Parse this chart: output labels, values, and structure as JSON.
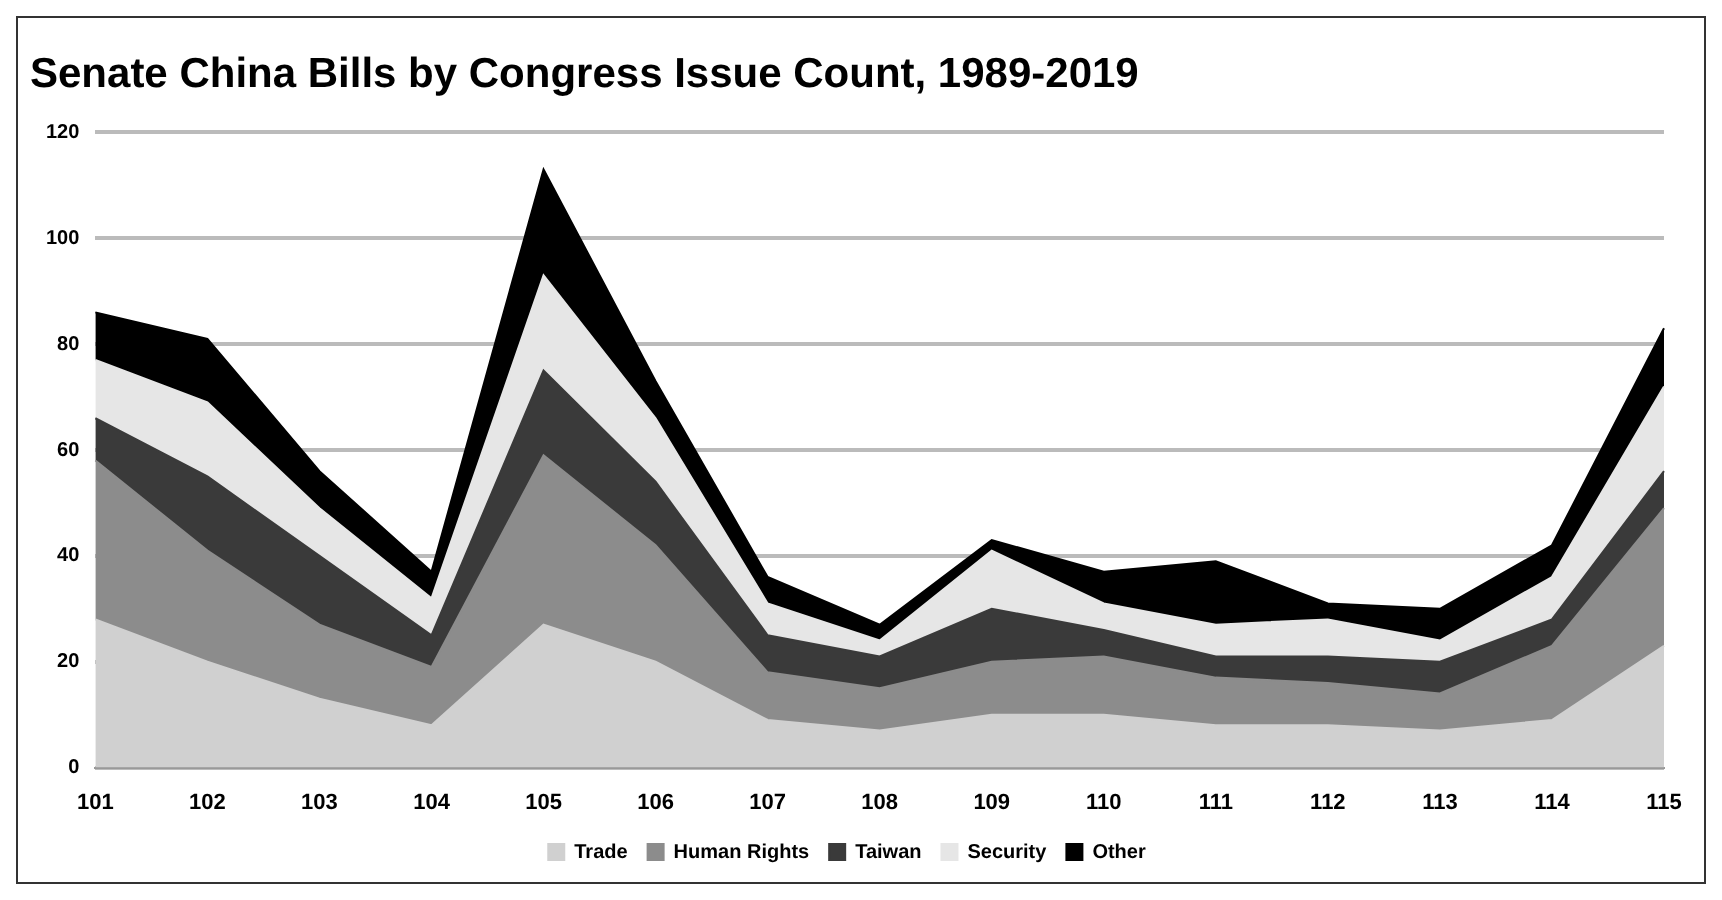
{
  "chart_data": {
    "type": "area",
    "title": "Senate China Bills by Congress Issue Count, 1989-2019",
    "categories": [
      "101",
      "102",
      "103",
      "104",
      "105",
      "106",
      "107",
      "108",
      "109",
      "110",
      "111",
      "112",
      "113",
      "114",
      "115"
    ],
    "stacked": true,
    "ylim": [
      0,
      120
    ],
    "yticks": [
      0,
      20,
      40,
      60,
      80,
      100,
      120
    ],
    "grid": "y",
    "legend": "bottom",
    "series": [
      {
        "name": "Trade",
        "color": "#d0d0d0",
        "values": [
          28,
          20,
          13,
          8,
          27,
          20,
          9,
          7,
          10,
          10,
          8,
          8,
          7,
          9,
          23
        ]
      },
      {
        "name": "Human Rights",
        "color": "#8c8c8c",
        "values": [
          30,
          21,
          14,
          11,
          32,
          22,
          9,
          8,
          10,
          11,
          9,
          8,
          7,
          14,
          26
        ]
      },
      {
        "name": "Taiwan",
        "color": "#3a3a3a",
        "values": [
          8,
          14,
          13,
          6,
          16,
          12,
          7,
          6,
          10,
          5,
          4,
          5,
          6,
          5,
          7
        ]
      },
      {
        "name": "Security",
        "color": "#e6e6e6",
        "values": [
          11,
          14,
          9,
          7,
          18,
          12,
          6,
          3,
          11,
          5,
          6,
          7,
          4,
          8,
          16
        ]
      },
      {
        "name": "Other",
        "color": "#000000",
        "values": [
          9,
          12,
          7,
          5,
          20,
          7,
          5,
          3,
          2,
          6,
          12,
          3,
          6,
          6,
          11
        ]
      }
    ]
  }
}
